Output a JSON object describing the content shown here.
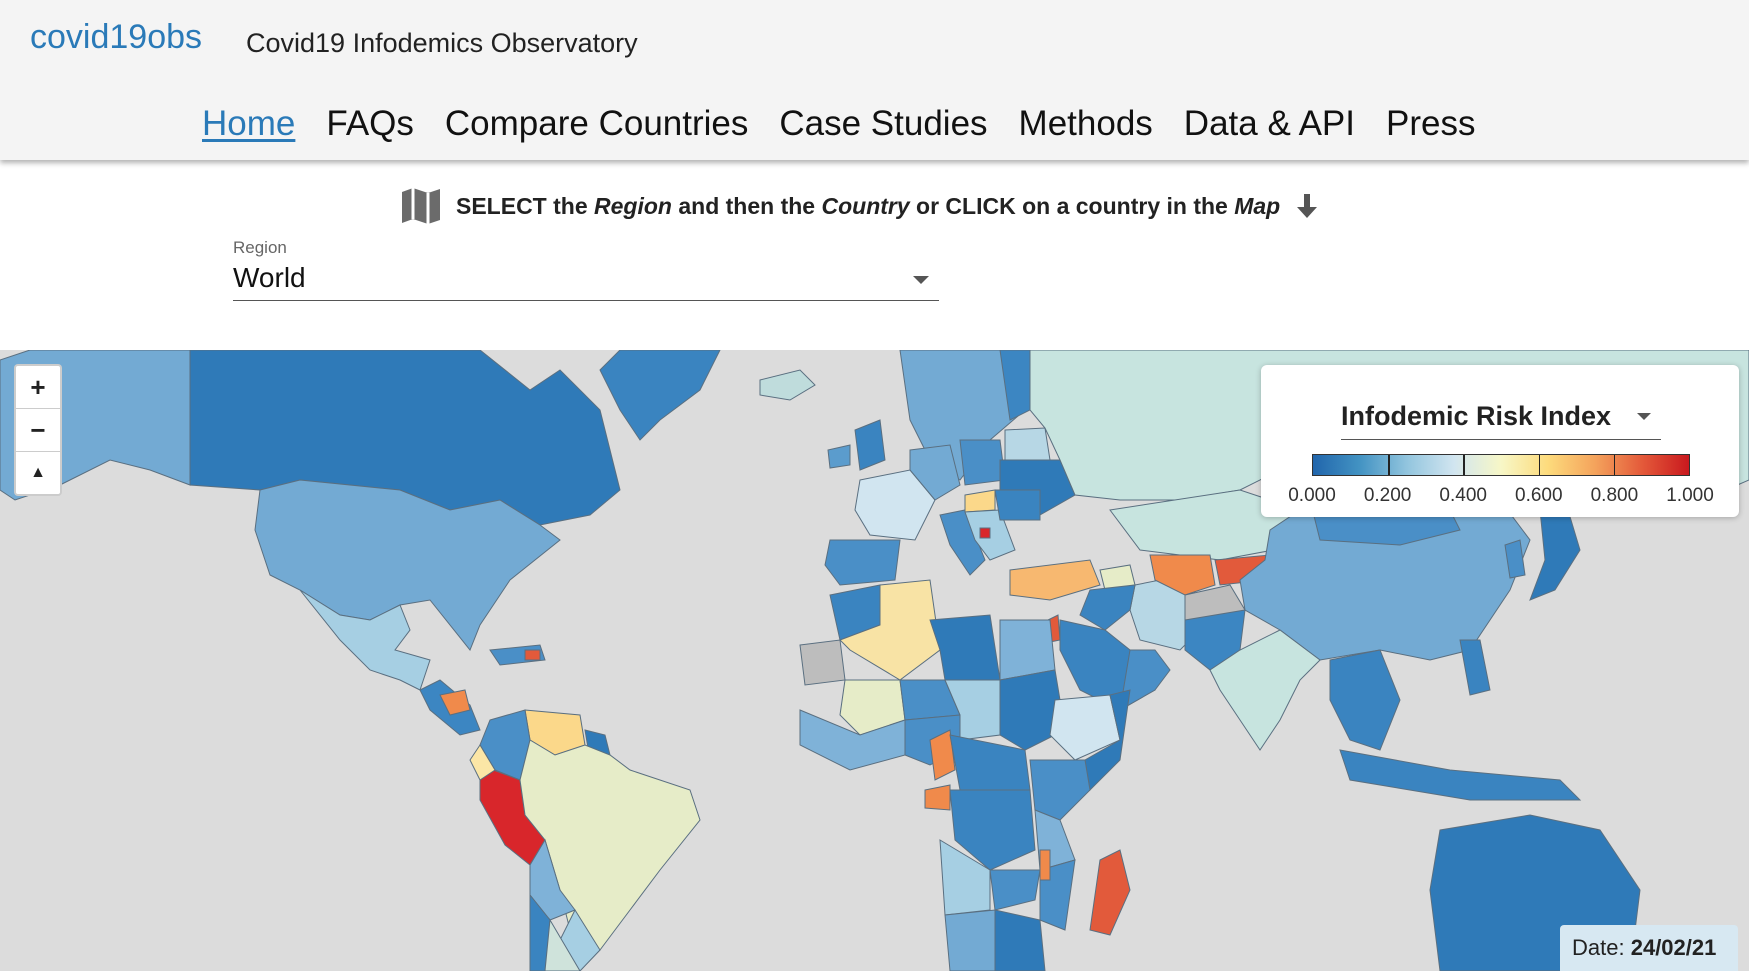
{
  "header": {
    "brand": "covid19obs",
    "subtitle": "Covid19 Infodemics Observatory",
    "nav": [
      "Home",
      "FAQs",
      "Compare Countries",
      "Case Studies",
      "Methods",
      "Data & API",
      "Press"
    ],
    "active_nav": "Home"
  },
  "instruction": {
    "part1": "SELECT the",
    "region_word": "Region",
    "part2": "and then the",
    "country_word": "Country",
    "part3": "or CLICK on a country in the",
    "map_word": "Map"
  },
  "region_select": {
    "label": "Region",
    "value": "World"
  },
  "map": {
    "zoom_in": "+",
    "zoom_out": "−",
    "reset_north": "▲",
    "legend": {
      "title": "Infodemic Risk Index",
      "ticks": [
        "0.000",
        "0.200",
        "0.400",
        "0.600",
        "0.800",
        "1.000"
      ],
      "colors": [
        "#2166ac",
        "#4393c3",
        "#92c5de",
        "#d1e5f0",
        "#f7f7c7",
        "#fddb7c",
        "#f4a35c",
        "#e45a3a",
        "#c9191e"
      ]
    },
    "date_label": "Date:",
    "date_value": "24/02/21"
  }
}
